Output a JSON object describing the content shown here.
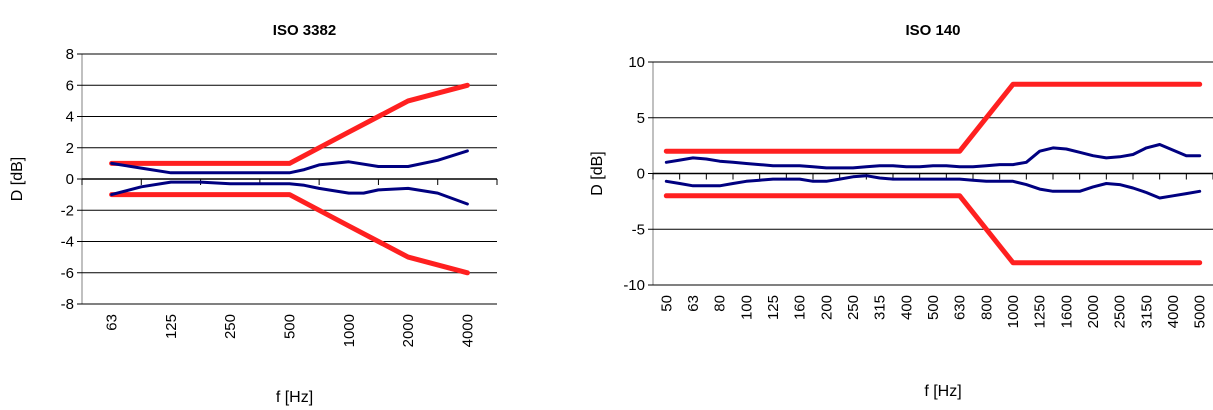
{
  "chart_data": [
    {
      "type": "line",
      "title": "ISO 3382",
      "xlabel": "f [Hz]",
      "ylabel": "D [dB]",
      "categories": [
        "63",
        "125",
        "250",
        "500",
        "1000",
        "2000",
        "4000"
      ],
      "x": [
        0,
        0.5,
        1,
        1.5,
        2,
        2.5,
        3,
        3.5,
        4,
        4.5,
        5,
        5.5,
        6
      ],
      "ylim": [
        -8,
        8
      ],
      "yticks": [
        -8,
        -6,
        -4,
        -2,
        0,
        2,
        4,
        6,
        8
      ],
      "grid": true,
      "series": [
        {
          "color": "#ff2020",
          "width": 5,
          "x": [
            0,
            1,
            2,
            3,
            4,
            5,
            6
          ],
          "values": [
            1,
            1,
            1,
            1,
            3,
            5,
            6
          ]
        },
        {
          "color": "#ff2020",
          "width": 5,
          "x": [
            0,
            1,
            2,
            3,
            4,
            5,
            6
          ],
          "values": [
            -1,
            -1,
            -1,
            -1,
            -3,
            -5,
            -6
          ]
        },
        {
          "color": "#000080",
          "width": 3,
          "x": [
            0,
            0.5,
            1,
            1.5,
            2,
            2.5,
            3,
            3.25,
            3.5,
            4,
            4.5,
            5,
            5.5,
            6
          ],
          "values": [
            1,
            0.7,
            0.4,
            0.4,
            0.4,
            0.4,
            0.4,
            0.6,
            0.9,
            1.1,
            0.8,
            0.8,
            1.2,
            1.8
          ]
        },
        {
          "color": "#000080",
          "width": 3,
          "x": [
            0,
            0.5,
            1,
            1.5,
            2,
            2.5,
            3,
            3.25,
            3.5,
            4,
            4.25,
            4.5,
            5,
            5.5,
            6
          ],
          "values": [
            -1,
            -0.5,
            -0.2,
            -0.2,
            -0.3,
            -0.3,
            -0.3,
            -0.4,
            -0.6,
            -0.9,
            -0.9,
            -0.7,
            -0.6,
            -0.9,
            -1.6
          ]
        }
      ]
    },
    {
      "type": "line",
      "title": "ISO 140",
      "xlabel": "f [Hz]",
      "ylabel": "D [dB]",
      "categories": [
        "50",
        "63",
        "80",
        "100",
        "125",
        "160",
        "200",
        "250",
        "315",
        "400",
        "500",
        "630",
        "800",
        "1000",
        "1250",
        "1600",
        "2000",
        "2500",
        "3150",
        "4000",
        "5000"
      ],
      "ylim": [
        -10,
        10
      ],
      "yticks": [
        -10,
        -5,
        0,
        5,
        10
      ],
      "grid": true,
      "series": [
        {
          "color": "#ff2020",
          "width": 5,
          "x": [
            0,
            11,
            13,
            20
          ],
          "values": [
            2,
            2,
            8,
            8
          ]
        },
        {
          "color": "#ff2020",
          "width": 5,
          "x": [
            0,
            11,
            13,
            20
          ],
          "values": [
            -2,
            -2,
            -8,
            -8
          ]
        },
        {
          "color": "#000080",
          "width": 3,
          "x": [
            0,
            0.5,
            1,
            1.5,
            2,
            2.5,
            3,
            3.5,
            4,
            4.5,
            5,
            5.5,
            6,
            6.5,
            7,
            7.5,
            8,
            8.5,
            9,
            9.5,
            10,
            10.5,
            11,
            11.5,
            12,
            12.5,
            13,
            13.5,
            14,
            14.5,
            15,
            15.5,
            16,
            16.5,
            17,
            17.5,
            18,
            18.5,
            19,
            19.5,
            20
          ],
          "values": [
            1.0,
            1.2,
            1.4,
            1.3,
            1.1,
            1.0,
            0.9,
            0.8,
            0.7,
            0.7,
            0.7,
            0.6,
            0.5,
            0.5,
            0.5,
            0.6,
            0.7,
            0.7,
            0.6,
            0.6,
            0.7,
            0.7,
            0.6,
            0.6,
            0.7,
            0.8,
            0.8,
            1.0,
            2.0,
            2.3,
            2.2,
            1.9,
            1.6,
            1.4,
            1.5,
            1.7,
            2.3,
            2.6,
            2.1,
            1.6,
            1.6
          ]
        },
        {
          "color": "#000080",
          "width": 3,
          "x": [
            0,
            0.5,
            1,
            1.5,
            2,
            2.5,
            3,
            3.5,
            4,
            4.5,
            5,
            5.5,
            6,
            6.5,
            7,
            7.5,
            8,
            8.5,
            9,
            9.5,
            10,
            10.5,
            11,
            11.5,
            12,
            12.5,
            13,
            13.5,
            14,
            14.5,
            15,
            15.5,
            16,
            16.5,
            17,
            17.5,
            18,
            18.5,
            19,
            19.5,
            20
          ],
          "values": [
            -0.7,
            -0.9,
            -1.1,
            -1.1,
            -1.1,
            -0.9,
            -0.7,
            -0.6,
            -0.5,
            -0.5,
            -0.5,
            -0.7,
            -0.7,
            -0.5,
            -0.3,
            -0.2,
            -0.4,
            -0.5,
            -0.5,
            -0.5,
            -0.5,
            -0.5,
            -0.5,
            -0.6,
            -0.7,
            -0.7,
            -0.7,
            -1.0,
            -1.4,
            -1.6,
            -1.6,
            -1.6,
            -1.2,
            -0.9,
            -1.0,
            -1.3,
            -1.7,
            -2.2,
            -2.0,
            -1.8,
            -1.6
          ]
        }
      ]
    }
  ]
}
